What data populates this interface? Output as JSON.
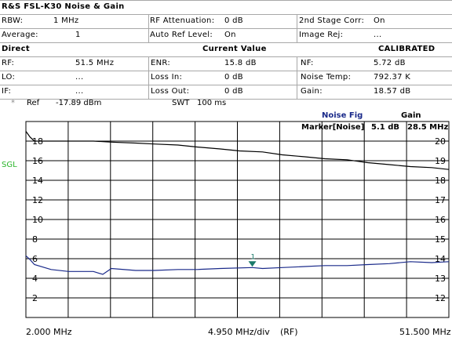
{
  "title": "R&S FSL-K30 Noise & Gain",
  "settings": {
    "rbw_label": "RBW:",
    "rbw_value": "1 MHz",
    "rf_att_label": "RF Attenuation:",
    "rf_att_value": "0 dB",
    "corr_label": "2nd Stage Corr:",
    "corr_value": "On",
    "avg_label": "Average:",
    "avg_value": "1",
    "auto_ref_label": "Auto Ref Level:",
    "auto_ref_value": "On",
    "image_rej_label": "Image Rej:",
    "image_rej_value": "..."
  },
  "sections": {
    "direct": "Direct",
    "current_value": "Current Value",
    "calibrated": "CALIBRATED"
  },
  "current": {
    "rf_label": "RF:",
    "rf_value": "51.5 MHz",
    "enr_label": "ENR:",
    "enr_value": "15.8 dB",
    "nf_label": "NF:",
    "nf_value": "5.72 dB",
    "lo_label": "LO:",
    "lo_value": "...",
    "loss_in_label": "Loss In:",
    "loss_in_value": "0 dB",
    "noise_temp_label": "Noise Temp:",
    "noise_temp_value": "792.37 K",
    "if_label": "IF:",
    "if_value": "...",
    "loss_out_label": "Loss Out:",
    "loss_out_value": "0 dB",
    "gain_label": "Gain:",
    "gain_value": "18.57 dB"
  },
  "ref_line": {
    "marker_symbol": "*",
    "ref_label": "Ref",
    "ref_value": "-17.89 dBm",
    "swt_label": "SWT",
    "swt_value": "100 ms"
  },
  "trace_header": {
    "noise_fig": "Noise Fig",
    "gain": "Gain",
    "marker_label": "Marker[Noise]",
    "marker_nf": "5.1 dB",
    "marker_freq": "28.5 MHz"
  },
  "sgl": "SGL",
  "marker_number": "1",
  "colors": {
    "noise_trace": "#1a2a8a",
    "gain_trace": "#000000",
    "marker": "#1a7a6a",
    "sgl": "#2bb52b",
    "grid": "#000000"
  },
  "chart_data": {
    "type": "line",
    "x_unit": "MHz",
    "x_start_label": "2.000 MHz",
    "x_div_label": "4.950 MHz/div",
    "x_mode_label": "(RF)",
    "x_stop_label": "51.500 MHz",
    "xlim": [
      2.0,
      51.5
    ],
    "left_axis": {
      "ticks": [
        2,
        4,
        6,
        8,
        10,
        12,
        14,
        16,
        18
      ],
      "tick_labels": [
        "2",
        "4",
        "6",
        "8",
        "10",
        "12",
        "14",
        "16",
        "18"
      ],
      "ylim": [
        0,
        20
      ]
    },
    "right_axis": {
      "ticks": [
        12,
        13,
        14,
        15,
        16,
        17,
        18,
        19,
        20
      ],
      "tick_labels": [
        "12",
        "13",
        "14",
        "15",
        "16",
        "17",
        "18",
        "19",
        "20"
      ],
      "ylim": [
        11,
        21
      ]
    },
    "grid": true,
    "series": [
      {
        "name": "Noise Fig",
        "axis": "left",
        "x": [
          2.0,
          2.5,
          3.0,
          4.95,
          7.0,
          9.9,
          11.0,
          12.0,
          14.85,
          17.0,
          19.8,
          22.0,
          24.75,
          28.5,
          29.7,
          32.0,
          34.65,
          37.0,
          39.6,
          42.0,
          44.55,
          47.0,
          49.5,
          51.5
        ],
        "y": [
          6.3,
          5.9,
          5.4,
          4.9,
          4.7,
          4.7,
          4.4,
          5.0,
          4.8,
          4.8,
          4.9,
          4.9,
          5.0,
          5.1,
          5.0,
          5.1,
          5.2,
          5.3,
          5.3,
          5.4,
          5.5,
          5.7,
          5.6,
          5.7
        ]
      },
      {
        "name": "Gain",
        "axis": "right",
        "x": [
          2.0,
          2.5,
          3.0,
          4.95,
          7.0,
          9.9,
          12.0,
          14.85,
          17.0,
          19.8,
          22.0,
          24.75,
          27.0,
          29.7,
          32.0,
          34.65,
          37.0,
          39.6,
          42.0,
          44.55,
          47.0,
          49.5,
          51.5
        ],
        "y": [
          20.5,
          20.2,
          20.0,
          20.0,
          20.0,
          20.0,
          19.95,
          19.9,
          19.85,
          19.8,
          19.7,
          19.6,
          19.5,
          19.45,
          19.3,
          19.2,
          19.1,
          19.05,
          18.9,
          18.8,
          18.7,
          18.65,
          18.55
        ]
      }
    ],
    "marker": {
      "label": "1",
      "x": 28.5,
      "y": 5.1,
      "series": "Noise Fig"
    }
  }
}
